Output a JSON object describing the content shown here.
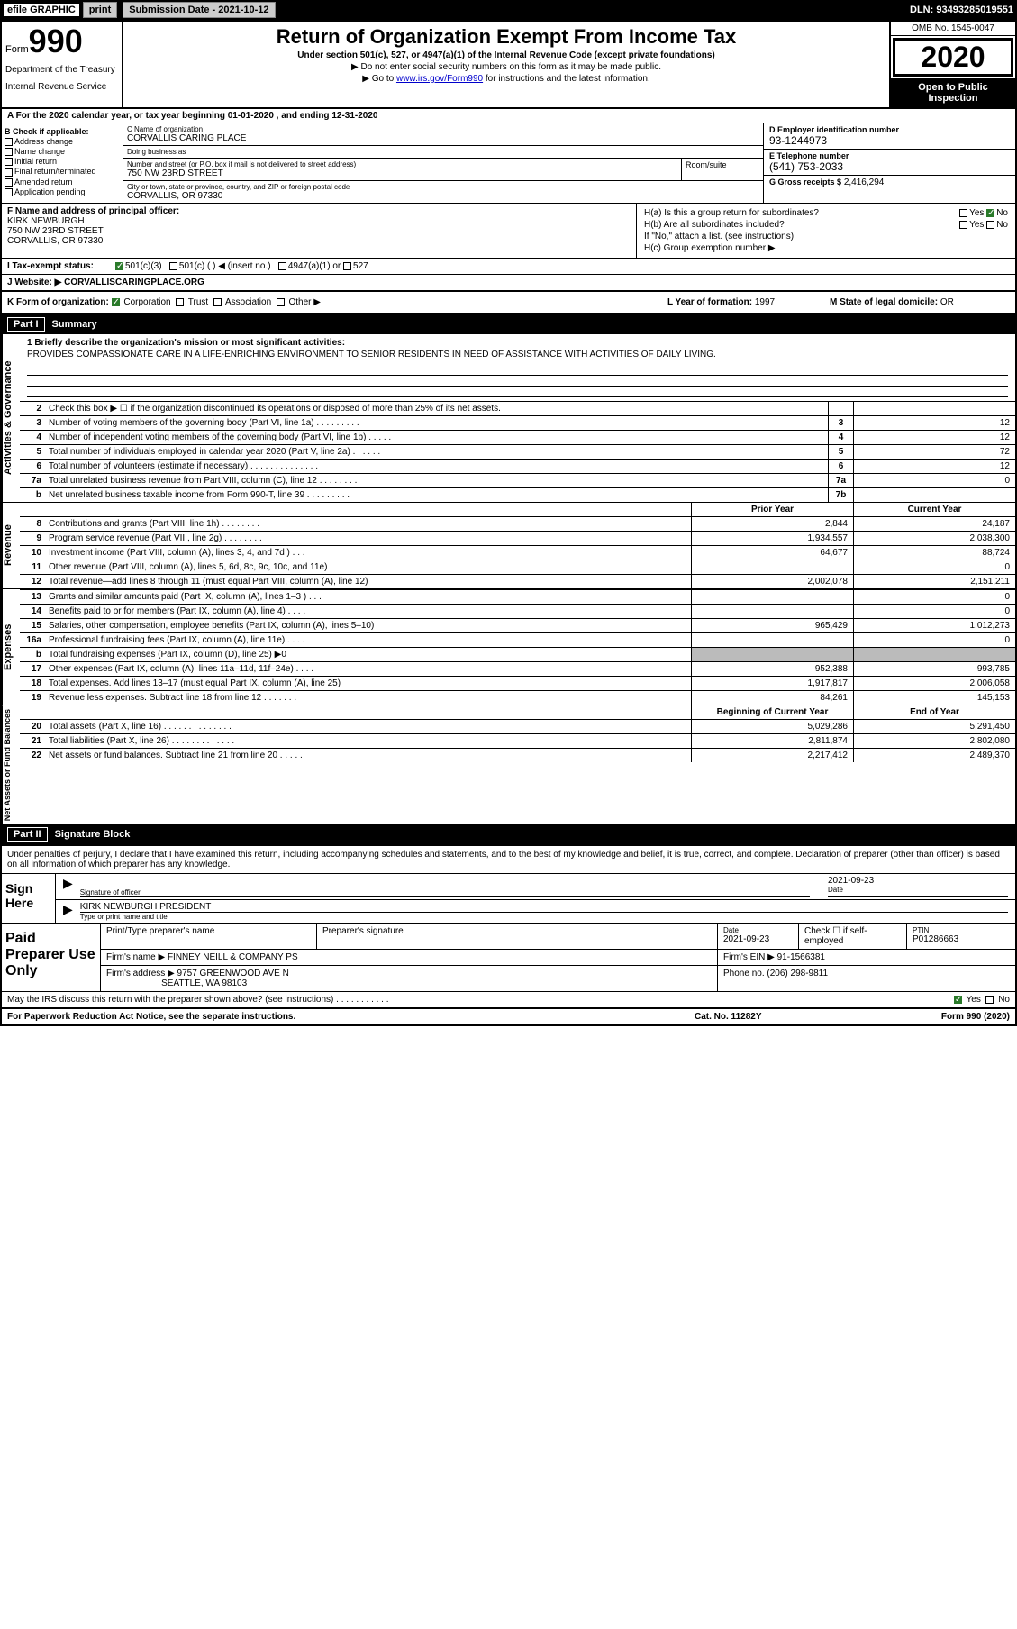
{
  "topbar": {
    "efile_label": "efile GRAPHIC",
    "print_btn": "print",
    "submission_label": "Submission Date - 2021-10-12",
    "dln": "DLN: 93493285019551"
  },
  "header": {
    "form_word": "Form",
    "form_num": "990",
    "dept1": "Department of the Treasury",
    "dept2": "Internal Revenue Service",
    "title": "Return of Organization Exempt From Income Tax",
    "subtitle": "Under section 501(c), 527, or 4947(a)(1) of the Internal Revenue Code (except private foundations)",
    "note1": "▶ Do not enter social security numbers on this form as it may be made public.",
    "note2_pre": "▶ Go to ",
    "note2_link": "www.irs.gov/Form990",
    "note2_post": " for instructions and the latest information.",
    "omb": "OMB No. 1545-0047",
    "year": "2020",
    "open": "Open to Public Inspection"
  },
  "period": "A For the 2020 calendar year, or tax year beginning 01-01-2020    , and ending 12-31-2020",
  "box_b": {
    "hdr": "B Check if applicable:",
    "opts": [
      "Address change",
      "Name change",
      "Initial return",
      "Final return/terminated",
      "Amended return",
      "Application pending"
    ]
  },
  "box_c": {
    "name_lbl": "C Name of organization",
    "name": "CORVALLIS CARING PLACE",
    "dba_lbl": "Doing business as",
    "dba": "",
    "addr_lbl": "Number and street (or P.O. box if mail is not delivered to street address)",
    "room_lbl": "Room/suite",
    "addr": "750 NW 23RD STREET",
    "city_lbl": "City or town, state or province, country, and ZIP or foreign postal code",
    "city": "CORVALLIS, OR  97330"
  },
  "box_d": {
    "lbl": "D Employer identification number",
    "val": "93-1244973"
  },
  "box_e": {
    "lbl": "E Telephone number",
    "val": "(541) 753-2033"
  },
  "box_g": {
    "lbl": "G Gross receipts $",
    "val": "2,416,294"
  },
  "box_f": {
    "lbl": "F Name and address of principal officer:",
    "name": "KIRK NEWBURGH",
    "addr1": "750 NW 23RD STREET",
    "addr2": "CORVALLIS, OR  97330"
  },
  "box_h": {
    "a_lbl": "H(a)  Is this a group return for subordinates?",
    "a_yes": "Yes",
    "a_no": "No",
    "b_lbl": "H(b)  Are all subordinates included?",
    "b_yes": "Yes",
    "b_no": "No",
    "b_note": "If \"No,\" attach a list. (see instructions)",
    "c_lbl": "H(c)  Group exemption number ▶"
  },
  "box_i": {
    "lbl": "I  Tax-exempt status:",
    "o1": "501(c)(3)",
    "o2": "501(c) (   ) ◀ (insert no.)",
    "o3": "4947(a)(1) or",
    "o4": "527"
  },
  "box_j": {
    "lbl": "J  Website: ▶",
    "val": "CORVALLISCARINGPLACE.ORG"
  },
  "box_k": {
    "lbl": "K Form of organization:",
    "o1": "Corporation",
    "o2": "Trust",
    "o3": "Association",
    "o4": "Other ▶",
    "l_lbl": "L Year of formation:",
    "l_val": "1997",
    "m_lbl": "M State of legal domicile:",
    "m_val": "OR"
  },
  "part1": {
    "num": "Part I",
    "title": "Summary"
  },
  "mission": {
    "q": "1  Briefly describe the organization's mission or most significant activities:",
    "text": "PROVIDES COMPASSIONATE CARE IN A LIFE-ENRICHING ENVIRONMENT TO SENIOR RESIDENTS IN NEED OF ASSISTANCE WITH ACTIVITIES OF DAILY LIVING."
  },
  "gov_lines": [
    {
      "n": "2",
      "t": "Check this box ▶ ☐ if the organization discontinued its operations or disposed of more than 25% of its net assets.",
      "box": "",
      "v": ""
    },
    {
      "n": "3",
      "t": "Number of voting members of the governing body (Part VI, line 1a)   .    .    .    .    .    .    .    .    .",
      "box": "3",
      "v": "12"
    },
    {
      "n": "4",
      "t": "Number of independent voting members of the governing body (Part VI, line 1b)   .    .    .    .    .",
      "box": "4",
      "v": "12"
    },
    {
      "n": "5",
      "t": "Total number of individuals employed in calendar year 2020 (Part V, line 2a)   .    .    .    .    .    .",
      "box": "5",
      "v": "72"
    },
    {
      "n": "6",
      "t": "Total number of volunteers (estimate if necessary)    .    .    .    .    .    .    .    .    .    .    .    .    .    .",
      "box": "6",
      "v": "12"
    },
    {
      "n": "7a",
      "t": "Total unrelated business revenue from Part VIII, column (C), line 12   .    .    .    .    .    .    .    .",
      "box": "7a",
      "v": "0"
    },
    {
      "n": "b",
      "t": "Net unrelated business taxable income from Form 990-T, line 39   .    .    .    .    .    .    .    .    .",
      "box": "7b",
      "v": ""
    }
  ],
  "rev_hdr": {
    "py": "Prior Year",
    "cy": "Current Year"
  },
  "rev_lines": [
    {
      "n": "8",
      "t": "Contributions and grants (Part VIII, line 1h)   .    .    .    .    .    .    .    .",
      "py": "2,844",
      "cy": "24,187"
    },
    {
      "n": "9",
      "t": "Program service revenue (Part VIII, line 2g)   .    .    .    .    .    .    .    .",
      "py": "1,934,557",
      "cy": "2,038,300"
    },
    {
      "n": "10",
      "t": "Investment income (Part VIII, column (A), lines 3, 4, and 7d )   .    .    .",
      "py": "64,677",
      "cy": "88,724"
    },
    {
      "n": "11",
      "t": "Other revenue (Part VIII, column (A), lines 5, 6d, 8c, 9c, 10c, and 11e)",
      "py": "",
      "cy": "0"
    },
    {
      "n": "12",
      "t": "Total revenue—add lines 8 through 11 (must equal Part VIII, column (A), line 12)",
      "py": "2,002,078",
      "cy": "2,151,211"
    }
  ],
  "exp_lines": [
    {
      "n": "13",
      "t": "Grants and similar amounts paid (Part IX, column (A), lines 1–3 )   .    .    .",
      "py": "",
      "cy": "0"
    },
    {
      "n": "14",
      "t": "Benefits paid to or for members (Part IX, column (A), line 4)   .    .    .    .",
      "py": "",
      "cy": "0"
    },
    {
      "n": "15",
      "t": "Salaries, other compensation, employee benefits (Part IX, column (A), lines 5–10)",
      "py": "965,429",
      "cy": "1,012,273"
    },
    {
      "n": "16a",
      "t": "Professional fundraising fees (Part IX, column (A), line 11e)   .    .    .    .",
      "py": "",
      "cy": "0"
    },
    {
      "n": "b",
      "t": "Total fundraising expenses (Part IX, column (D), line 25) ▶0",
      "py": "SHADE",
      "cy": "SHADE"
    },
    {
      "n": "17",
      "t": "Other expenses (Part IX, column (A), lines 11a–11d, 11f–24e)   .    .    .    .",
      "py": "952,388",
      "cy": "993,785"
    },
    {
      "n": "18",
      "t": "Total expenses. Add lines 13–17 (must equal Part IX, column (A), line 25)",
      "py": "1,917,817",
      "cy": "2,006,058"
    },
    {
      "n": "19",
      "t": "Revenue less expenses. Subtract line 18 from line 12   .    .    .    .    .    .    .",
      "py": "84,261",
      "cy": "145,153"
    }
  ],
  "na_hdr": {
    "b": "Beginning of Current Year",
    "e": "End of Year"
  },
  "na_lines": [
    {
      "n": "20",
      "t": "Total assets (Part X, line 16)   .    .    .    .    .    .    .    .    .    .    .    .    .    .",
      "py": "5,029,286",
      "cy": "5,291,450"
    },
    {
      "n": "21",
      "t": "Total liabilities (Part X, line 26)   .    .    .    .    .    .    .    .    .    .    .    .    .",
      "py": "2,811,874",
      "cy": "2,802,080"
    },
    {
      "n": "22",
      "t": "Net assets or fund balances. Subtract line 21 from line 20   .    .    .    .    .",
      "py": "2,217,412",
      "cy": "2,489,370"
    }
  ],
  "part2": {
    "num": "Part II",
    "title": "Signature Block"
  },
  "sig": {
    "intro": "Under penalties of perjury, I declare that I have examined this return, including accompanying schedules and statements, and to the best of my knowledge and belief, it is true, correct, and complete. Declaration of preparer (other than officer) is based on all information of which preparer has any knowledge.",
    "here": "Sign Here",
    "sig_lbl": "Signature of officer",
    "date_lbl": "Date",
    "date": "2021-09-23",
    "name": "KIRK NEWBURGH  PRESIDENT",
    "name_lbl": "Type or print name and title"
  },
  "paid": {
    "hdr": "Paid Preparer Use Only",
    "prep_name_lbl": "Print/Type preparer's name",
    "prep_sig_lbl": "Preparer's signature",
    "date_lbl": "Date",
    "date": "2021-09-23",
    "check_lbl": "Check ☐ if self-employed",
    "ptin_lbl": "PTIN",
    "ptin": "P01286663",
    "firm_name_lbl": "Firm's name    ▶",
    "firm_name": "FINNEY NEILL & COMPANY PS",
    "firm_ein_lbl": "Firm's EIN ▶",
    "firm_ein": "91-1566381",
    "firm_addr_lbl": "Firm's address ▶",
    "firm_addr1": "9757 GREENWOOD AVE N",
    "firm_addr2": "SEATTLE, WA  98103",
    "phone_lbl": "Phone no.",
    "phone": "(206) 298-9811"
  },
  "discuss": {
    "q": "May the IRS discuss this return with the preparer shown above? (see instructions)    .    .    .    .    .    .    .    .    .    .    .",
    "yes": "Yes",
    "no": "No"
  },
  "footer": {
    "pra": "For Paperwork Reduction Act Notice, see the separate instructions.",
    "cat": "Cat. No. 11282Y",
    "form": "Form 990 (2020)"
  },
  "side_labels": {
    "gov": "Activities & Governance",
    "rev": "Revenue",
    "exp": "Expenses",
    "na": "Net Assets or Fund Balances"
  }
}
